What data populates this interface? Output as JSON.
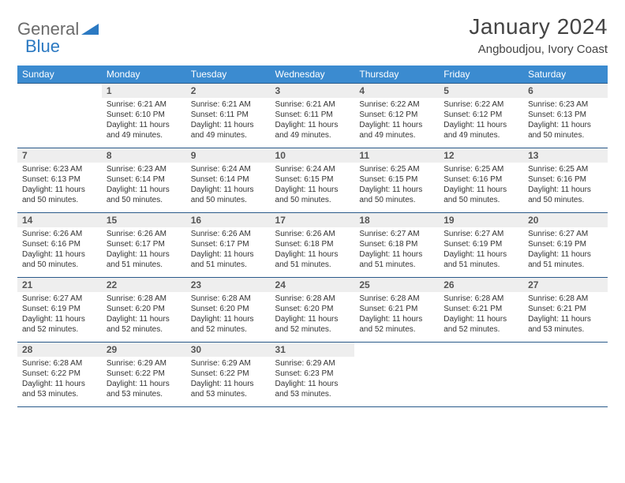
{
  "brand": {
    "part1": "General",
    "part2": "Blue"
  },
  "title": "January 2024",
  "location": "Angboudjou, Ivory Coast",
  "colors": {
    "header_bg": "#3b8bd0",
    "header_text": "#ffffff",
    "border": "#2a5a8a",
    "daynum_bg": "#eeeeee",
    "body_text": "#333333",
    "brand_gray": "#6b6b6b",
    "brand_blue": "#2b79c2"
  },
  "day_labels": [
    "Sunday",
    "Monday",
    "Tuesday",
    "Wednesday",
    "Thursday",
    "Friday",
    "Saturday"
  ],
  "weeks": [
    [
      {
        "n": "",
        "sr": "",
        "ss": "",
        "dl": ""
      },
      {
        "n": "1",
        "sr": "Sunrise: 6:21 AM",
        "ss": "Sunset: 6:10 PM",
        "dl": "Daylight: 11 hours and 49 minutes."
      },
      {
        "n": "2",
        "sr": "Sunrise: 6:21 AM",
        "ss": "Sunset: 6:11 PM",
        "dl": "Daylight: 11 hours and 49 minutes."
      },
      {
        "n": "3",
        "sr": "Sunrise: 6:21 AM",
        "ss": "Sunset: 6:11 PM",
        "dl": "Daylight: 11 hours and 49 minutes."
      },
      {
        "n": "4",
        "sr": "Sunrise: 6:22 AM",
        "ss": "Sunset: 6:12 PM",
        "dl": "Daylight: 11 hours and 49 minutes."
      },
      {
        "n": "5",
        "sr": "Sunrise: 6:22 AM",
        "ss": "Sunset: 6:12 PM",
        "dl": "Daylight: 11 hours and 49 minutes."
      },
      {
        "n": "6",
        "sr": "Sunrise: 6:23 AM",
        "ss": "Sunset: 6:13 PM",
        "dl": "Daylight: 11 hours and 50 minutes."
      }
    ],
    [
      {
        "n": "7",
        "sr": "Sunrise: 6:23 AM",
        "ss": "Sunset: 6:13 PM",
        "dl": "Daylight: 11 hours and 50 minutes."
      },
      {
        "n": "8",
        "sr": "Sunrise: 6:23 AM",
        "ss": "Sunset: 6:14 PM",
        "dl": "Daylight: 11 hours and 50 minutes."
      },
      {
        "n": "9",
        "sr": "Sunrise: 6:24 AM",
        "ss": "Sunset: 6:14 PM",
        "dl": "Daylight: 11 hours and 50 minutes."
      },
      {
        "n": "10",
        "sr": "Sunrise: 6:24 AM",
        "ss": "Sunset: 6:15 PM",
        "dl": "Daylight: 11 hours and 50 minutes."
      },
      {
        "n": "11",
        "sr": "Sunrise: 6:25 AM",
        "ss": "Sunset: 6:15 PM",
        "dl": "Daylight: 11 hours and 50 minutes."
      },
      {
        "n": "12",
        "sr": "Sunrise: 6:25 AM",
        "ss": "Sunset: 6:16 PM",
        "dl": "Daylight: 11 hours and 50 minutes."
      },
      {
        "n": "13",
        "sr": "Sunrise: 6:25 AM",
        "ss": "Sunset: 6:16 PM",
        "dl": "Daylight: 11 hours and 50 minutes."
      }
    ],
    [
      {
        "n": "14",
        "sr": "Sunrise: 6:26 AM",
        "ss": "Sunset: 6:16 PM",
        "dl": "Daylight: 11 hours and 50 minutes."
      },
      {
        "n": "15",
        "sr": "Sunrise: 6:26 AM",
        "ss": "Sunset: 6:17 PM",
        "dl": "Daylight: 11 hours and 51 minutes."
      },
      {
        "n": "16",
        "sr": "Sunrise: 6:26 AM",
        "ss": "Sunset: 6:17 PM",
        "dl": "Daylight: 11 hours and 51 minutes."
      },
      {
        "n": "17",
        "sr": "Sunrise: 6:26 AM",
        "ss": "Sunset: 6:18 PM",
        "dl": "Daylight: 11 hours and 51 minutes."
      },
      {
        "n": "18",
        "sr": "Sunrise: 6:27 AM",
        "ss": "Sunset: 6:18 PM",
        "dl": "Daylight: 11 hours and 51 minutes."
      },
      {
        "n": "19",
        "sr": "Sunrise: 6:27 AM",
        "ss": "Sunset: 6:19 PM",
        "dl": "Daylight: 11 hours and 51 minutes."
      },
      {
        "n": "20",
        "sr": "Sunrise: 6:27 AM",
        "ss": "Sunset: 6:19 PM",
        "dl": "Daylight: 11 hours and 51 minutes."
      }
    ],
    [
      {
        "n": "21",
        "sr": "Sunrise: 6:27 AM",
        "ss": "Sunset: 6:19 PM",
        "dl": "Daylight: 11 hours and 52 minutes."
      },
      {
        "n": "22",
        "sr": "Sunrise: 6:28 AM",
        "ss": "Sunset: 6:20 PM",
        "dl": "Daylight: 11 hours and 52 minutes."
      },
      {
        "n": "23",
        "sr": "Sunrise: 6:28 AM",
        "ss": "Sunset: 6:20 PM",
        "dl": "Daylight: 11 hours and 52 minutes."
      },
      {
        "n": "24",
        "sr": "Sunrise: 6:28 AM",
        "ss": "Sunset: 6:20 PM",
        "dl": "Daylight: 11 hours and 52 minutes."
      },
      {
        "n": "25",
        "sr": "Sunrise: 6:28 AM",
        "ss": "Sunset: 6:21 PM",
        "dl": "Daylight: 11 hours and 52 minutes."
      },
      {
        "n": "26",
        "sr": "Sunrise: 6:28 AM",
        "ss": "Sunset: 6:21 PM",
        "dl": "Daylight: 11 hours and 52 minutes."
      },
      {
        "n": "27",
        "sr": "Sunrise: 6:28 AM",
        "ss": "Sunset: 6:21 PM",
        "dl": "Daylight: 11 hours and 53 minutes."
      }
    ],
    [
      {
        "n": "28",
        "sr": "Sunrise: 6:28 AM",
        "ss": "Sunset: 6:22 PM",
        "dl": "Daylight: 11 hours and 53 minutes."
      },
      {
        "n": "29",
        "sr": "Sunrise: 6:29 AM",
        "ss": "Sunset: 6:22 PM",
        "dl": "Daylight: 11 hours and 53 minutes."
      },
      {
        "n": "30",
        "sr": "Sunrise: 6:29 AM",
        "ss": "Sunset: 6:22 PM",
        "dl": "Daylight: 11 hours and 53 minutes."
      },
      {
        "n": "31",
        "sr": "Sunrise: 6:29 AM",
        "ss": "Sunset: 6:23 PM",
        "dl": "Daylight: 11 hours and 53 minutes."
      },
      {
        "n": "",
        "sr": "",
        "ss": "",
        "dl": ""
      },
      {
        "n": "",
        "sr": "",
        "ss": "",
        "dl": ""
      },
      {
        "n": "",
        "sr": "",
        "ss": "",
        "dl": ""
      }
    ]
  ]
}
